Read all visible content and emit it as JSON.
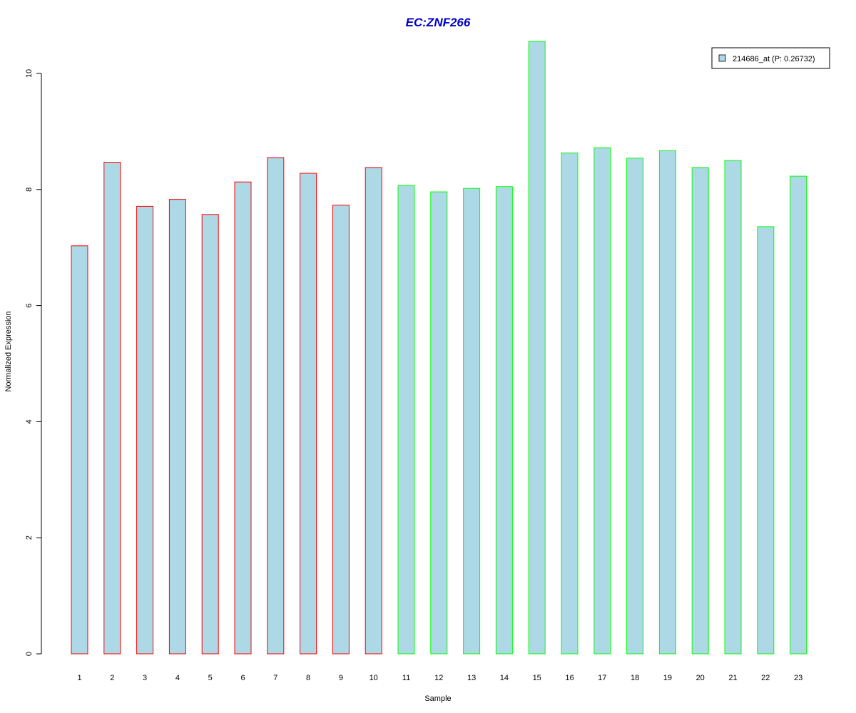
{
  "chart_data": {
    "type": "bar",
    "title": "EC:ZNF266",
    "xlabel": "Sample",
    "ylabel": "Normalized Expression",
    "ylim": [
      0,
      10.5
    ],
    "yticks": [
      0,
      2,
      4,
      6,
      8,
      10
    ],
    "categories": [
      "1",
      "2",
      "3",
      "4",
      "5",
      "6",
      "7",
      "8",
      "9",
      "10",
      "11",
      "12",
      "13",
      "14",
      "15",
      "16",
      "17",
      "18",
      "19",
      "20",
      "21",
      "22",
      "23"
    ],
    "series": [
      {
        "name": "214686_at (P: 0.26732)",
        "values": [
          7.03,
          8.47,
          7.71,
          7.83,
          7.57,
          8.13,
          8.55,
          8.28,
          7.73,
          8.38,
          8.07,
          7.96,
          8.02,
          8.05,
          10.55,
          8.63,
          8.72,
          8.54,
          8.67,
          8.38,
          8.5,
          7.36,
          8.23
        ]
      }
    ],
    "groups": [
      "red",
      "red",
      "red",
      "red",
      "red",
      "red",
      "red",
      "red",
      "red",
      "red",
      "green",
      "green",
      "green",
      "green",
      "green",
      "green",
      "green",
      "green",
      "green",
      "green",
      "green",
      "green",
      "green"
    ],
    "grid": false,
    "legend_position": "top-right"
  },
  "colors": {
    "title": "#0000cc",
    "bar_fill": "#add8e6",
    "red": "#ff0000",
    "green": "#00ff00",
    "axis": "#000000"
  }
}
